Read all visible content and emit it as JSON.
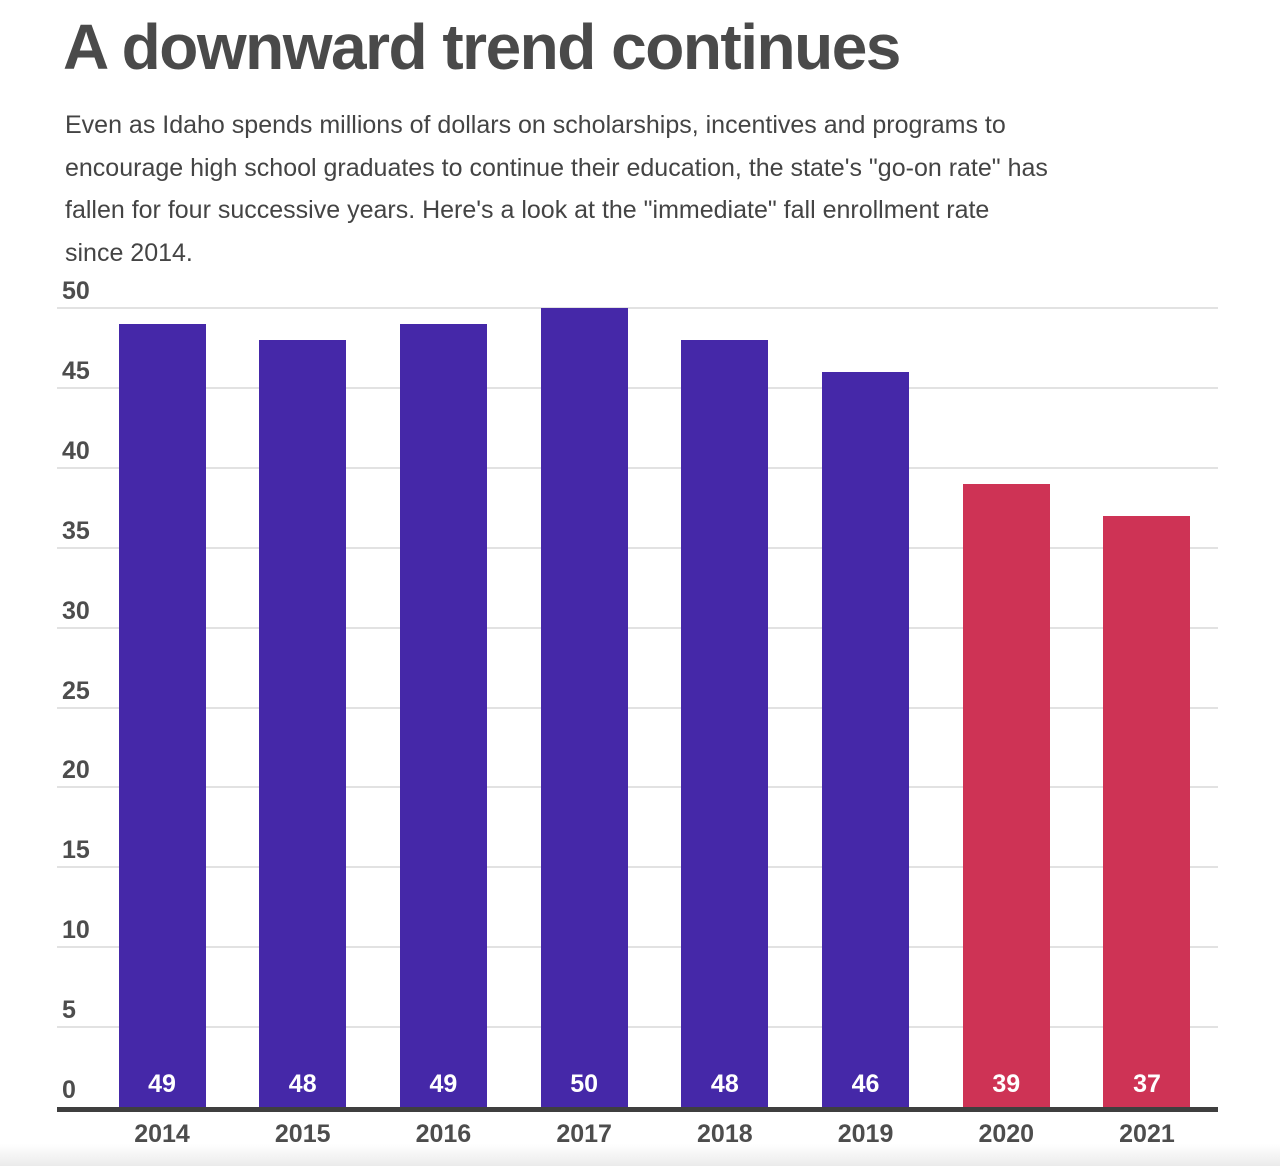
{
  "header": {
    "title": "A downward trend continues",
    "subtitle_lines": [
      "Even as Idaho spends millions of dollars on scholarships, incentives and programs to",
      "encourage high school graduates to continue their education, the state's \"go-on rate\" has",
      "fallen for four successive years. Here's a look at the \"immediate\" fall enrollment rate",
      "since 2014."
    ]
  },
  "chart_data": {
    "type": "bar",
    "title": "A downward trend continues",
    "subtitle": "Even as Idaho spends millions of dollars on scholarships, incentives and programs to encourage high school graduates to continue their education, the state's \"go-on rate\" has fallen for four successive years. Here's a look at the \"immediate\" fall enrollment rate since 2014.",
    "categories": [
      "2014",
      "2015",
      "2016",
      "2017",
      "2018",
      "2019",
      "2020",
      "2021"
    ],
    "values": [
      49,
      48,
      49,
      50,
      48,
      46,
      39,
      37
    ],
    "value_labels": [
      "49",
      "48",
      "49",
      "50",
      "48",
      "46",
      "39",
      "37"
    ],
    "bar_colors": [
      "#4528A8",
      "#4528A8",
      "#4528A8",
      "#4528A8",
      "#4528A8",
      "#4528A8",
      "#CE3355",
      "#CE3355"
    ],
    "xlabel": "",
    "ylabel": "",
    "ylim": [
      0,
      50
    ],
    "yticks": [
      0,
      5,
      10,
      15,
      20,
      25,
      30,
      35,
      40,
      45,
      50
    ],
    "grid": "horizontal",
    "legend": "none",
    "colors": {
      "purple_bar": "#4528A8",
      "red_bar": "#CE3355",
      "gridline": "#e2e2e2",
      "axis_line": "#3f3f3f",
      "tick_label": "#4d4d4d",
      "bar_value_label": "#ffffff",
      "title": "#4a4a4a",
      "subtitle": "#444444",
      "background": "#ffffff"
    }
  }
}
